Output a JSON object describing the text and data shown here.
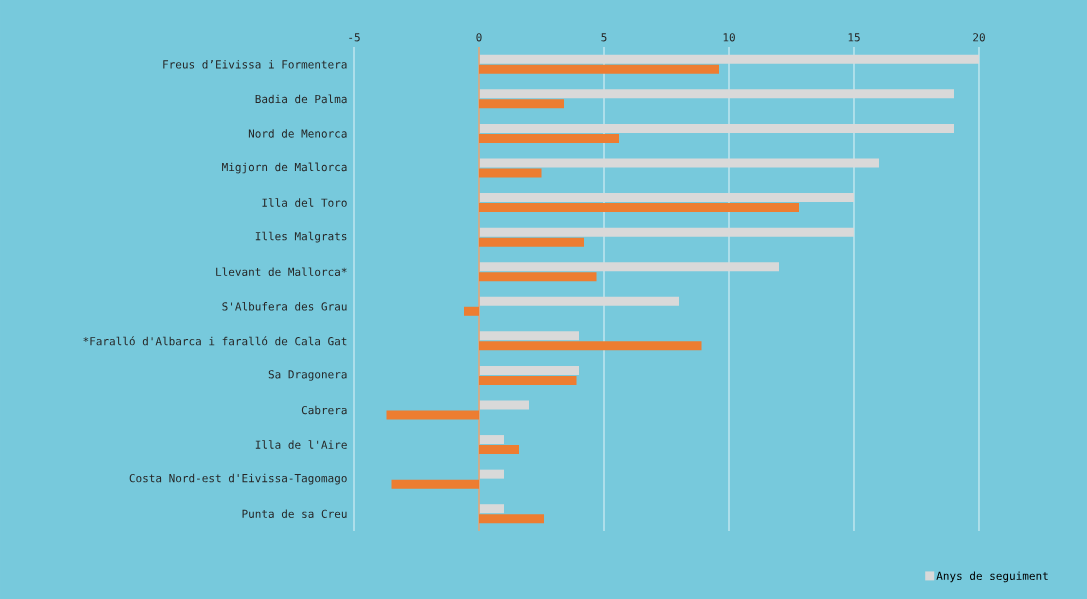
{
  "chart_data": {
    "type": "bar",
    "orientation": "horizontal",
    "categories": [
      "Freus d’Eivissa i Formentera",
      "Badia de Palma",
      "Nord de Menorca",
      "Migjorn de Mallorca",
      "Illa del Toro",
      "Illes Malgrats",
      "Llevant de Mallorca*",
      "S'Albufera des Grau",
      "*Faralló d'Albarca i faralló de Cala Gat",
      "Sa Dragonera",
      "Cabrera",
      "Illa de l'Aire",
      "Costa Nord-est d'Eivissa-Tagomago",
      "Punta de sa Creu"
    ],
    "series": [
      {
        "name": "Anys de seguiment",
        "color": "#d9d9d9",
        "values": [
          20,
          19,
          19,
          16,
          15,
          15,
          12,
          8,
          4,
          4,
          2,
          1,
          1,
          1
        ]
      },
      {
        "color": "#ed7d31",
        "values": [
          9.6,
          3.4,
          5.6,
          2.5,
          12.8,
          4.2,
          4.7,
          -0.6,
          8.9,
          3.9,
          -3.7,
          1.6,
          -3.5,
          2.6
        ]
      }
    ],
    "xlim": [
      -5,
      20
    ],
    "xticks": [
      -5,
      0,
      5,
      10,
      15,
      20
    ],
    "grid": "x",
    "legend": "bottom right",
    "ref_lines": [
      {
        "axis": "x",
        "value": 0,
        "color": "#ed7d31"
      }
    ]
  }
}
